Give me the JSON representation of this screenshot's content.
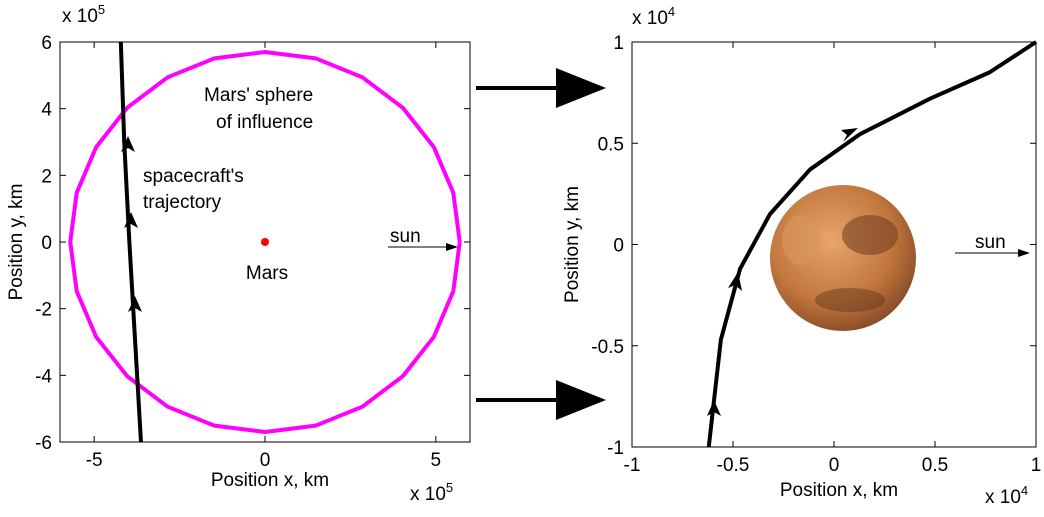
{
  "chart_data": [
    {
      "type": "line",
      "xlim": [
        -6,
        6
      ],
      "ylim": [
        -6,
        6
      ],
      "xticks": [
        -5,
        0,
        5
      ],
      "yticks": [
        -6,
        -4,
        -2,
        0,
        2,
        4,
        6
      ],
      "xlabel": "Position x, km",
      "ylabel": "Position y, km",
      "x_scale_label": {
        "base": "x 10",
        "exponent": "5"
      },
      "y_scale_label": {
        "base": "x 10",
        "exponent": "5"
      },
      "series": [
        {
          "color": "#ff00ff",
          "x": [
            5.7,
            5.51,
            4.94,
            4.03,
            2.85,
            1.48,
            0,
            -1.48,
            -2.85,
            -4.03,
            -4.94,
            -5.51,
            -5.7,
            -5.51,
            -4.94,
            -4.03,
            -2.85,
            -1.48,
            0,
            1.48,
            2.85,
            4.03,
            4.94,
            5.51,
            5.7
          ],
          "values": [
            0,
            1.48,
            2.85,
            4.03,
            4.94,
            5.51,
            5.7,
            5.51,
            4.94,
            4.03,
            2.85,
            1.48,
            0,
            -1.48,
            -2.85,
            -4.03,
            -4.94,
            -5.51,
            -5.7,
            -5.51,
            -4.94,
            -4.03,
            -2.85,
            -1.48,
            0
          ]
        },
        {
          "color": "#000000",
          "x": [
            -4.22,
            -4.12,
            -3.97,
            -3.8,
            -3.63
          ],
          "values": [
            6,
            3,
            0,
            -3,
            -6
          ]
        },
        {
          "color": "#ff0000",
          "mode": "markers",
          "x": [
            0
          ],
          "values": [
            0
          ]
        }
      ],
      "annotations": [
        {
          "lines": [
            "Mars' sphere",
            "of influence"
          ]
        },
        {
          "lines": [
            "spacecraft's",
            "trajectory"
          ]
        },
        {
          "lines": [
            "Mars"
          ]
        },
        {
          "lines": [
            "sun"
          ]
        }
      ]
    },
    {
      "type": "line",
      "xlim": [
        -1,
        1
      ],
      "ylim": [
        -1,
        1
      ],
      "xticks": [
        -1,
        -0.5,
        0,
        0.5,
        1
      ],
      "yticks": [
        -1,
        -0.5,
        0,
        0.5,
        1
      ],
      "xlabel": "Position x, km",
      "ylabel": "Position y, km",
      "x_scale_label": {
        "base": "x 10",
        "exponent": "4"
      },
      "y_scale_label": {
        "base": "x 10",
        "exponent": "4"
      },
      "series": [
        {
          "color": "#000000",
          "x": [
            -0.62,
            -0.594,
            -0.56,
            -0.465,
            -0.317,
            -0.119,
            0.129,
            0.475,
            0.77,
            1
          ],
          "values": [
            -1,
            -0.77,
            -0.47,
            -0.12,
            0.15,
            0.37,
            0.545,
            0.72,
            0.85,
            1
          ]
        }
      ],
      "annotations": [
        {
          "lines": [
            "sun"
          ]
        }
      ]
    }
  ]
}
